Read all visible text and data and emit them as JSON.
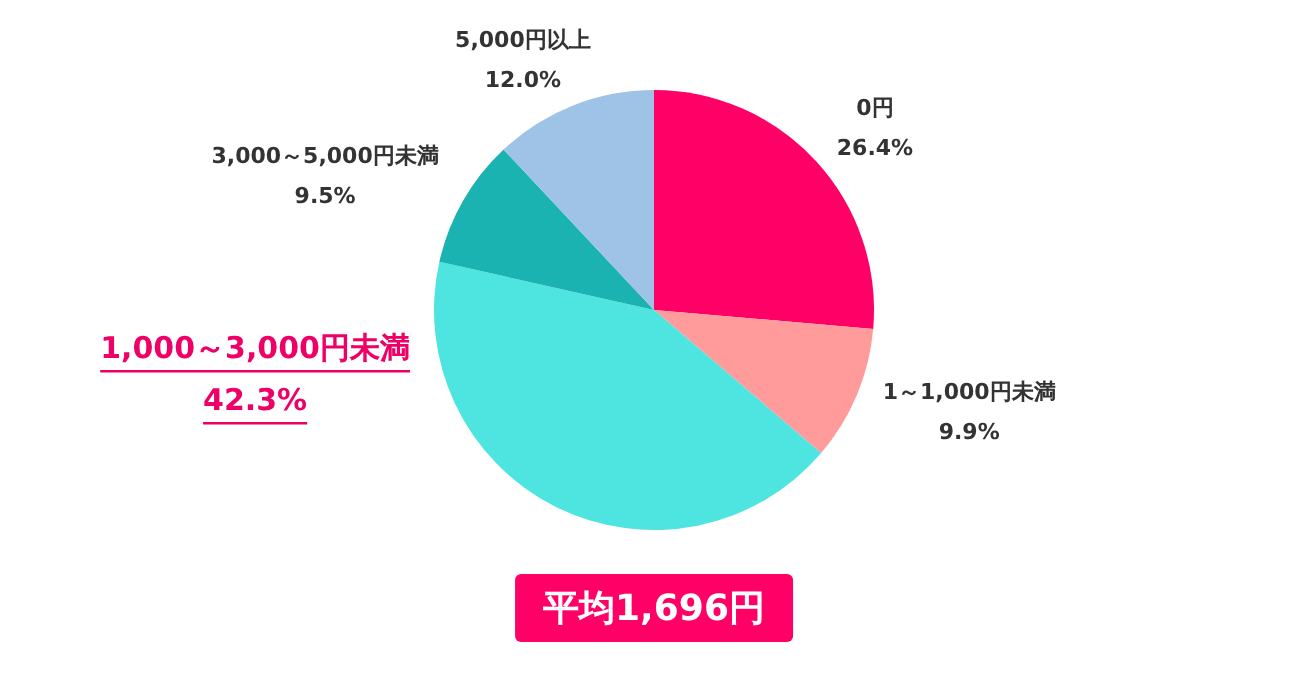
{
  "chart_data": {
    "type": "pie",
    "categories": [
      "0円",
      "1～1,000円未満",
      "1,000～3,000円未満",
      "3,000～5,000円未満",
      "5,000円以上"
    ],
    "values": [
      26.4,
      9.9,
      42.3,
      9.5,
      12.0
    ],
    "value_labels": [
      "26.4%",
      "9.9%",
      "42.3%",
      "9.5%",
      "12.0%"
    ],
    "colors": [
      "#ff0066",
      "#ff9b9b",
      "#4ee4e0",
      "#1ab3b1",
      "#9fc3e6"
    ],
    "annotations": [
      "平均1,696円"
    ],
    "legend": false
  }
}
